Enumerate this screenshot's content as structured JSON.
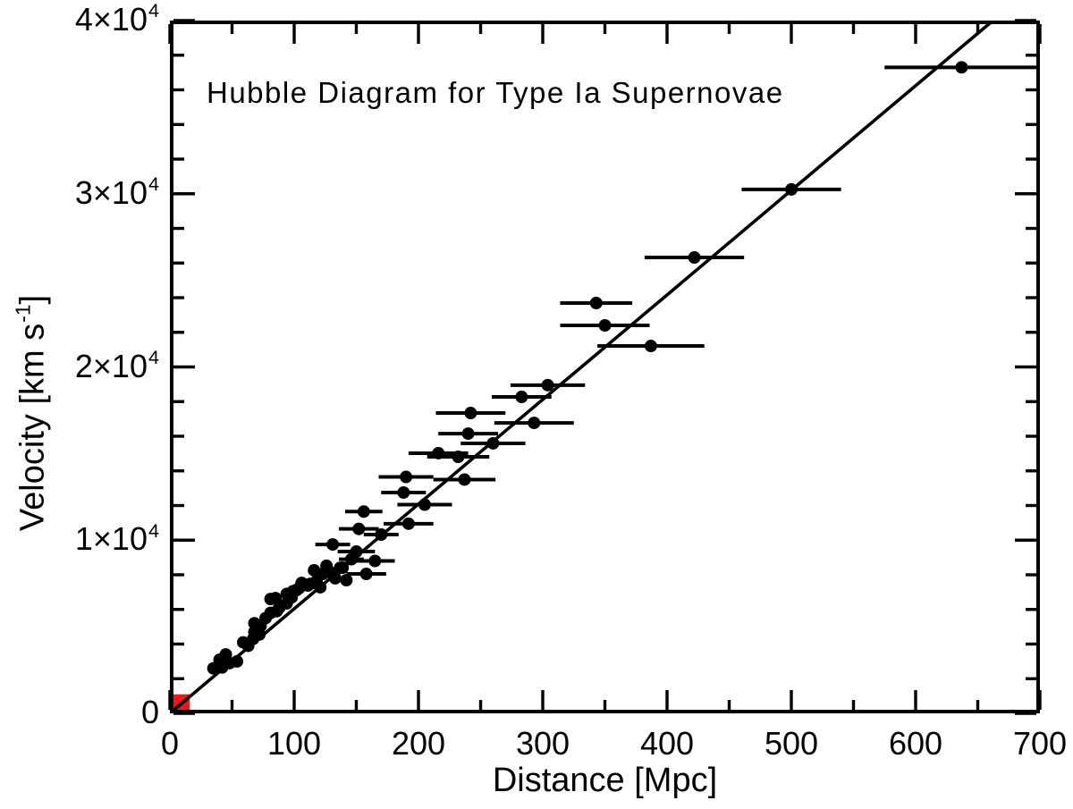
{
  "figure": {
    "background": "#ffffff",
    "ink_color": "#000000",
    "accent_red": "#e8191c"
  },
  "chart_data": {
    "type": "scatter",
    "title": "Hubble Diagram for Type Ia Supernovae",
    "xlabel": "Distance [Mpc]",
    "ylabel_pre": "Velocity [km s",
    "ylabel_sup": "-1",
    "ylabel_post": "]",
    "xlim": [
      0,
      700
    ],
    "ylim": [
      0,
      40000
    ],
    "grid": false,
    "legend": "none",
    "x_major_ticks": [
      0,
      100,
      200,
      300,
      400,
      500,
      600,
      700
    ],
    "x_minor_ticks": [
      50,
      150,
      250,
      350,
      450,
      550,
      650
    ],
    "y_major_ticks": [
      0,
      10000,
      20000,
      30000,
      40000
    ],
    "y_minor_step": 2000,
    "y_tick_labels": [
      {
        "v": 0,
        "main": "0",
        "sup": ""
      },
      {
        "v": 10000,
        "main": "1×10",
        "sup": "4"
      },
      {
        "v": 20000,
        "main": "2×10",
        "sup": "4"
      },
      {
        "v": 30000,
        "main": "3×10",
        "sup": "4"
      },
      {
        "v": 40000,
        "main": "4×10",
        "sup": "4"
      }
    ],
    "fit_line": {
      "slope_km_s_per_mpc": 60.4,
      "intercept": 0,
      "x_start": 0,
      "x_end": 680
    },
    "red_square": {
      "x0": 0,
      "x1": 16,
      "y0": 0,
      "y1": 1100
    },
    "marker_radius_px": 7,
    "points_format": [
      "distance_mpc",
      "velocity_km_s",
      "x_error_mpc"
    ],
    "points": [
      [
        35,
        2600,
        0
      ],
      [
        40,
        3100,
        0
      ],
      [
        42,
        2650,
        0
      ],
      [
        45,
        3400,
        0
      ],
      [
        48,
        2900,
        0
      ],
      [
        54,
        3000,
        0
      ],
      [
        59,
        4100,
        0
      ],
      [
        63,
        3900,
        0
      ],
      [
        67,
        4300,
        0
      ],
      [
        68,
        4700,
        0
      ],
      [
        68,
        5200,
        0
      ],
      [
        72,
        4550,
        0
      ],
      [
        73,
        5050,
        0
      ],
      [
        77,
        5500,
        0
      ],
      [
        81,
        5800,
        0
      ],
      [
        81,
        6600,
        0
      ],
      [
        85,
        6650,
        0
      ],
      [
        86,
        5900,
        0
      ],
      [
        88,
        6100,
        0
      ],
      [
        94,
        6350,
        0
      ],
      [
        94,
        6900,
        0
      ],
      [
        98,
        6700,
        0
      ],
      [
        99,
        7050,
        0
      ],
      [
        102,
        7120,
        0
      ],
      [
        104,
        7230,
        0
      ],
      [
        106,
        7530,
        0
      ],
      [
        111,
        7380,
        0
      ],
      [
        113,
        7480,
        0
      ],
      [
        116,
        8260,
        0
      ],
      [
        118,
        7640,
        0
      ],
      [
        121,
        7280,
        0
      ],
      [
        123,
        8050,
        0
      ],
      [
        126,
        8520,
        0
      ],
      [
        129,
        8150,
        0
      ],
      [
        133,
        7800,
        0
      ],
      [
        137,
        8400,
        0
      ],
      [
        139,
        8410,
        0
      ],
      [
        142,
        7690,
        0
      ],
      [
        146,
        8900,
        10
      ],
      [
        131,
        9750,
        14
      ],
      [
        150,
        9340,
        15
      ],
      [
        152,
        10650,
        16
      ],
      [
        156,
        11650,
        15
      ],
      [
        158,
        8050,
        16
      ],
      [
        165,
        8800,
        16
      ],
      [
        170,
        10320,
        14
      ],
      [
        188,
        12750,
        18
      ],
      [
        190,
        13650,
        22
      ],
      [
        192,
        10950,
        20
      ],
      [
        205,
        12050,
        22
      ],
      [
        216,
        15020,
        24
      ],
      [
        232,
        14810,
        25
      ],
      [
        237,
        13500,
        25
      ],
      [
        240,
        16150,
        24
      ],
      [
        242,
        17340,
        28
      ],
      [
        260,
        15590,
        26
      ],
      [
        283,
        18270,
        24
      ],
      [
        293,
        16770,
        32
      ],
      [
        304,
        18950,
        30
      ],
      [
        343,
        23690,
        29
      ],
      [
        350,
        22400,
        36
      ],
      [
        387,
        21210,
        43
      ],
      [
        422,
        26320,
        40
      ],
      [
        500,
        30250,
        40
      ],
      [
        637,
        37300,
        62
      ]
    ]
  }
}
